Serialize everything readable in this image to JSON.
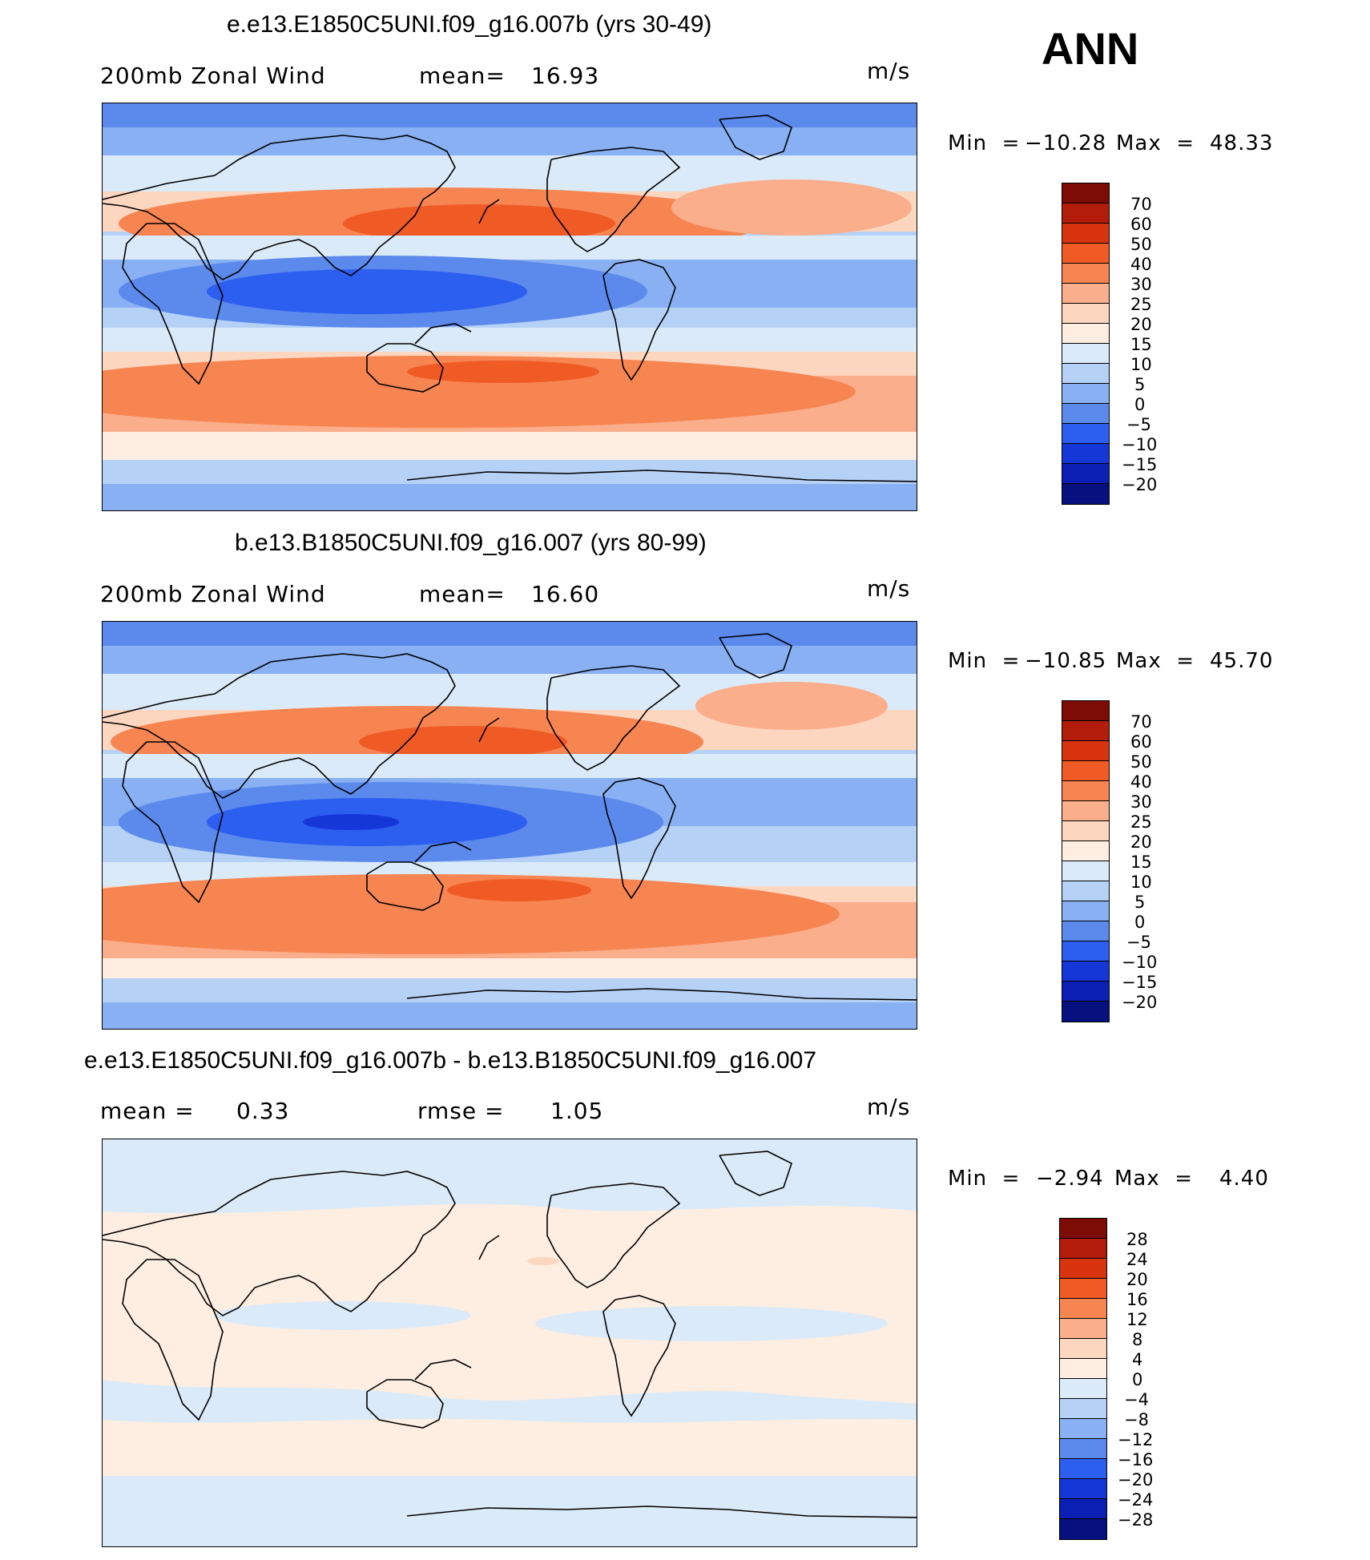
{
  "header": {
    "season": "ANN"
  },
  "panels": [
    {
      "title": "e.e13.E1850C5UNI.f09_g16.007b (yrs 30-49)",
      "left_label": "200mb  Zonal  Wind",
      "stat_label": "mean=",
      "stat_value": "16.93",
      "units": "m/s",
      "min_label": "Min  =",
      "min_value": "−10.28",
      "max_label": "Max  =",
      "max_value": "48.33",
      "palette": "abs",
      "levels": [
        "70",
        "60",
        "50",
        "40",
        "30",
        "25",
        "20",
        "15",
        "10",
        "5",
        "0",
        "−5",
        "−10",
        "−15",
        "−20"
      ]
    },
    {
      "title": "b.e13.B1850C5UNI.f09_g16.007 (yrs 80-99)",
      "left_label": "200mb  Zonal  Wind",
      "stat_label": "mean=",
      "stat_value": "16.60",
      "units": "m/s",
      "min_label": "Min  =",
      "min_value": "−10.85",
      "max_label": "Max  =",
      "max_value": "45.70",
      "palette": "abs",
      "levels": [
        "70",
        "60",
        "50",
        "40",
        "30",
        "25",
        "20",
        "15",
        "10",
        "5",
        "0",
        "−5",
        "−10",
        "−15",
        "−20"
      ]
    },
    {
      "title": "e.e13.E1850C5UNI.f09_g16.007b - b.e13.B1850C5UNI.f09_g16.007",
      "left_label": "mean  =",
      "left_value": "0.33",
      "stat_label": "rmse  =",
      "stat_value": "1.05",
      "units": "m/s",
      "min_label": "Min  =",
      "min_value": "−2.94",
      "max_label": "Max  =",
      "max_value": "4.40",
      "palette": "diff",
      "levels": [
        "28",
        "24",
        "20",
        "16",
        "12",
        "8",
        "4",
        "0",
        "−4",
        "−8",
        "−12",
        "−16",
        "−20",
        "−24",
        "−28"
      ]
    }
  ],
  "colors": {
    "abs_palette": [
      "#7d0c06",
      "#b31c0a",
      "#d83410",
      "#f05a25",
      "#f78551",
      "#fbae8c",
      "#fdd6bf",
      "#fdeee1",
      "#dbeaf8",
      "#b6d1f6",
      "#88b0f2",
      "#5b89ec",
      "#2c5ef0",
      "#1537d8",
      "#0c1fb4",
      "#07107f"
    ],
    "diff_palette": [
      "#7d0c06",
      "#b31c0a",
      "#d83410",
      "#f05a25",
      "#f78551",
      "#fbae8c",
      "#fdd6bf",
      "#fdeee1",
      "#dbeaf8",
      "#b6d1f6",
      "#88b0f2",
      "#5b89ec",
      "#2c5ef0",
      "#1537d8",
      "#0c1fb4",
      "#07107f"
    ]
  }
}
